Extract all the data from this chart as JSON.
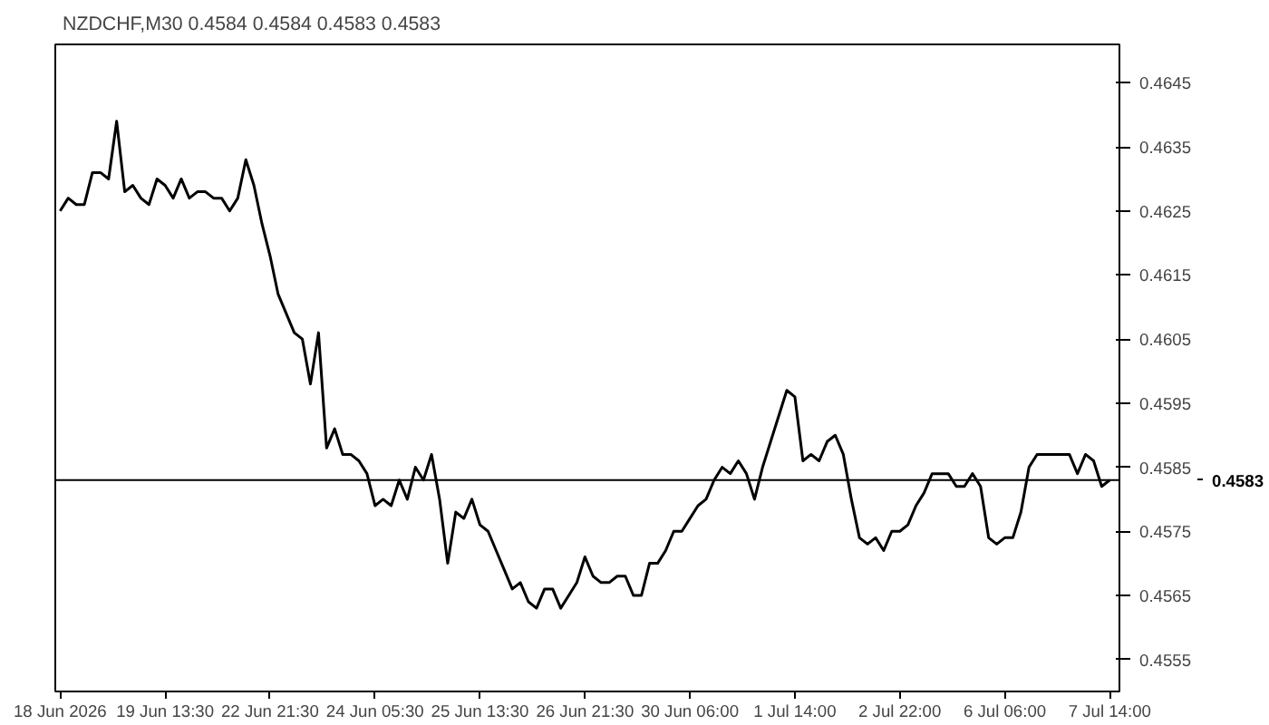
{
  "chart_data": {
    "type": "line",
    "title": "NZDCHF,M30 0.4584 0.4584 0.4583 0.4583",
    "categories": [
      "18 Jun 2026",
      null,
      null,
      null,
      null,
      null,
      null,
      null,
      null,
      null,
      null,
      null,
      null,
      "19 Jun 13:30",
      null,
      null,
      null,
      null,
      null,
      null,
      null,
      null,
      null,
      null,
      null,
      null,
      "22 Jun 21:30",
      null,
      null,
      null,
      null,
      null,
      null,
      null,
      null,
      null,
      null,
      null,
      null,
      "24 Jun 05:30",
      null,
      null,
      null,
      null,
      null,
      null,
      null,
      null,
      null,
      null,
      null,
      null,
      "25 Jun 13:30",
      null,
      null,
      null,
      null,
      null,
      null,
      null,
      null,
      null,
      null,
      null,
      null,
      "26 Jun 21:30",
      null,
      null,
      null,
      null,
      null,
      null,
      null,
      null,
      null,
      null,
      null,
      null,
      "30 Jun 06:00",
      null,
      null,
      null,
      null,
      null,
      null,
      null,
      null,
      null,
      null,
      null,
      null,
      "1 Jul 14:00",
      null,
      null,
      null,
      null,
      null,
      null,
      null,
      null,
      null,
      null,
      null,
      null,
      "2 Jul 22:00",
      null,
      null,
      null,
      null,
      null,
      null,
      null,
      null,
      null,
      null,
      null,
      null,
      "6 Jul 06:00",
      null,
      null,
      null,
      null,
      null,
      null,
      null,
      null,
      null,
      null,
      null,
      null,
      "7 Jul 14:00"
    ],
    "series": [
      {
        "color": "#000000",
        "values": [
          0.4625,
          0.4627,
          0.4626,
          0.4626,
          0.4631,
          0.4631,
          0.463,
          0.4639,
          0.4628,
          0.4629,
          0.4627,
          0.4626,
          0.463,
          0.4629,
          0.4627,
          0.463,
          0.4627,
          0.4628,
          0.4628,
          0.4627,
          0.4627,
          0.4625,
          0.4627,
          0.4633,
          0.4629,
          0.4623,
          0.4618,
          0.4612,
          0.4609,
          0.4606,
          0.4605,
          0.4598,
          0.4606,
          0.4588,
          0.4591,
          0.4587,
          0.4587,
          0.4586,
          0.4584,
          0.4579,
          0.458,
          0.4579,
          0.4583,
          0.458,
          0.4585,
          0.4583,
          0.4587,
          0.458,
          0.457,
          0.4578,
          0.4577,
          0.458,
          0.4576,
          0.4575,
          0.4572,
          0.4569,
          0.4566,
          0.4567,
          0.4564,
          0.4563,
          0.4566,
          0.4566,
          0.4563,
          0.4565,
          0.4567,
          0.4571,
          0.4568,
          0.4567,
          0.4567,
          0.4568,
          0.4568,
          0.4565,
          0.4565,
          0.457,
          0.457,
          0.4572,
          0.4575,
          0.4575,
          0.4577,
          0.4579,
          0.458,
          0.4583,
          0.4585,
          0.4584,
          0.4586,
          0.4584,
          0.458,
          0.4585,
          0.4589,
          0.4593,
          0.4597,
          0.4596,
          0.4586,
          0.4587,
          0.4586,
          0.4589,
          0.459,
          0.4587,
          0.458,
          0.4574,
          0.4573,
          0.4574,
          0.4572,
          0.4575,
          0.4575,
          0.4576,
          0.4579,
          0.4581,
          0.4584,
          0.4584,
          0.4584,
          0.4582,
          0.4582,
          0.4584,
          0.4582,
          0.4574,
          0.4573,
          0.4574,
          0.4574,
          0.4578,
          0.4585,
          0.4587,
          0.4587,
          0.4587,
          0.4587,
          0.4587,
          0.4584,
          0.4587,
          0.4586,
          0.4582,
          0.4583
        ]
      }
    ],
    "ylim": [
      0.455,
      0.4651
    ],
    "yticks": [
      0.4555,
      0.4565,
      0.4575,
      0.4585,
      0.4595,
      0.4605,
      0.4615,
      0.4625,
      0.4635,
      0.4645
    ],
    "ref_lines": [
      {
        "axis": "y",
        "value": 0.4583,
        "label": "0.4583",
        "color": "#000000"
      }
    ],
    "grid": false,
    "marker": "none",
    "line_style": "solid"
  }
}
